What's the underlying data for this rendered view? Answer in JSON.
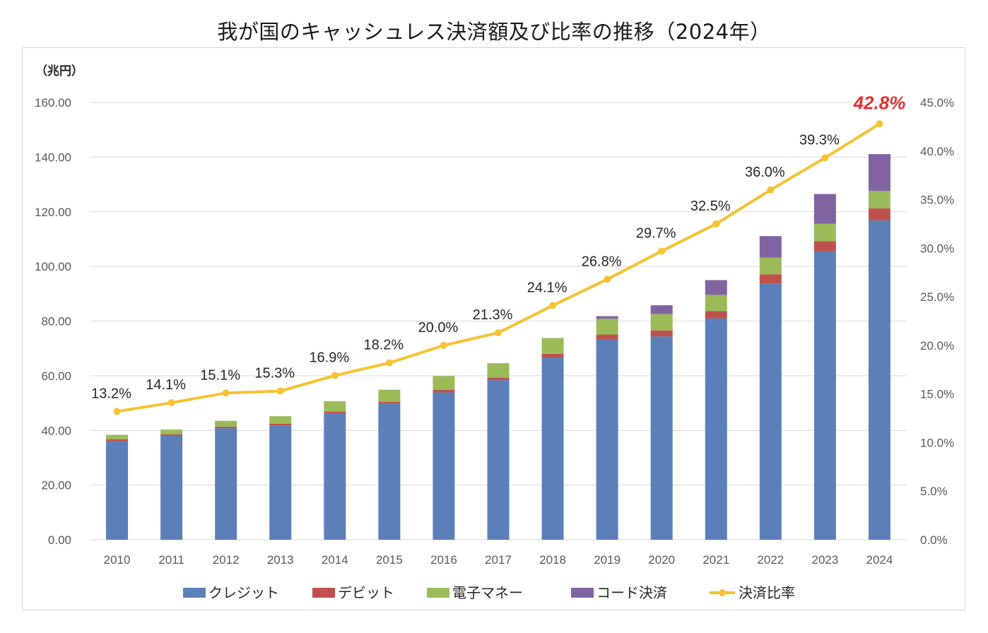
{
  "title": "我が国のキャッシュレス決済額及び比率の推移（2024年）",
  "chart_data": {
    "type": "bar",
    "stacked": true,
    "title": "我が国のキャッシュレス決済額及び比率の推移（2024年）",
    "y_unit_label": "（兆円）",
    "categories": [
      "2010",
      "2011",
      "2012",
      "2013",
      "2014",
      "2015",
      "2016",
      "2017",
      "2018",
      "2019",
      "2020",
      "2021",
      "2022",
      "2023",
      "2024"
    ],
    "series": [
      {
        "name": "クレジット",
        "color": "#5b7fb9",
        "values": [
          36.0,
          38.0,
          40.8,
          41.8,
          46.3,
          49.8,
          53.9,
          58.4,
          66.7,
          73.4,
          74.4,
          81.0,
          93.8,
          105.6,
          116.9
        ]
      },
      {
        "name": "デビット",
        "color": "#c0504d",
        "values": [
          0.8,
          0.6,
          0.6,
          0.6,
          0.6,
          0.6,
          0.9,
          0.9,
          1.3,
          1.7,
          2.2,
          2.7,
          3.3,
          3.6,
          4.3
        ]
      },
      {
        "name": "電子マネー",
        "color": "#9bbb59",
        "values": [
          1.6,
          1.7,
          2.1,
          2.8,
          3.8,
          4.5,
          5.1,
          5.3,
          5.8,
          5.8,
          6.0,
          5.9,
          6.1,
          6.4,
          6.4
        ]
      },
      {
        "name": "コード決済",
        "color": "#8064a2",
        "values": [
          0,
          0,
          0,
          0,
          0,
          0,
          0,
          0,
          0,
          0.9,
          3.2,
          5.4,
          7.9,
          10.9,
          13.5
        ]
      }
    ],
    "line": {
      "name": "決済比率",
      "color": "#f5c231",
      "values": [
        13.2,
        14.1,
        15.1,
        15.3,
        16.9,
        18.2,
        20.0,
        21.3,
        24.1,
        26.8,
        29.7,
        32.5,
        36.0,
        39.3,
        42.8
      ],
      "labels": [
        "13.2%",
        "14.1%",
        "15.1%",
        "15.3%",
        "16.9%",
        "18.2%",
        "20.0%",
        "21.3%",
        "24.1%",
        "26.8%",
        "29.7%",
        "32.5%",
        "36.0%",
        "39.3%",
        "42.8%"
      ],
      "highlight_last": true,
      "highlight_color": "#e53030"
    },
    "ylim": [
      0,
      160
    ],
    "y_ticks": [
      "0.00",
      "20.00",
      "40.00",
      "60.00",
      "80.00",
      "100.00",
      "120.00",
      "140.00",
      "160.00"
    ],
    "y2lim": [
      0,
      45
    ],
    "y2_ticks": [
      "0.0%",
      "5.0%",
      "10.0%",
      "15.0%",
      "20.0%",
      "25.0%",
      "30.0%",
      "35.0%",
      "40.0%",
      "45.0%"
    ],
    "grid": true,
    "legend_position": "bottom"
  }
}
